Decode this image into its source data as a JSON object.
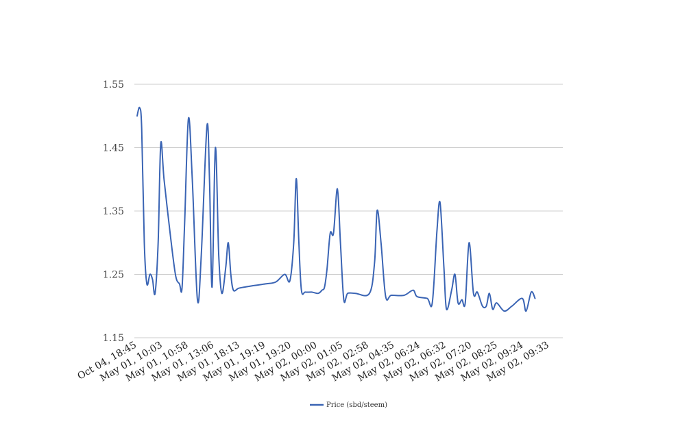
{
  "chart_data": {
    "type": "line",
    "title": "",
    "xlabel": "",
    "ylabel": "",
    "ylim": [
      1.15,
      1.55
    ],
    "yticks": [
      "1.15",
      "1.25",
      "1.35",
      "1.45",
      "1.55"
    ],
    "grid": true,
    "legend_position": "bottom-center",
    "x_tick_labels": [
      "Oct 04, 18:45",
      "May 01, 10:03",
      "May 01, 10:58",
      "May 01, 13:06",
      "May 01, 18:13",
      "May 01, 19:19",
      "May 01, 19:20",
      "May 02, 00:00",
      "May 02, 01:05",
      "May 02, 02:58",
      "May 02, 04:35",
      "May 02, 06:24",
      "May 02, 06:32",
      "May 02, 07:20",
      "May 02, 08:25",
      "May 02, 09:24",
      "May 02, 09:33"
    ],
    "series": [
      {
        "name": "Price (sbd/steem)",
        "color": "#3a64b4",
        "x_span": [
          0,
          16.5
        ],
        "points": [
          [
            0.0,
            1.5
          ],
          [
            0.1,
            1.513
          ],
          [
            0.18,
            1.48
          ],
          [
            0.28,
            1.3
          ],
          [
            0.38,
            1.235
          ],
          [
            0.5,
            1.25
          ],
          [
            0.6,
            1.242
          ],
          [
            0.7,
            1.22
          ],
          [
            0.82,
            1.3
          ],
          [
            0.92,
            1.456
          ],
          [
            1.05,
            1.4
          ],
          [
            1.3,
            1.31
          ],
          [
            1.5,
            1.248
          ],
          [
            1.65,
            1.235
          ],
          [
            1.75,
            1.228
          ],
          [
            1.85,
            1.33
          ],
          [
            2.0,
            1.496
          ],
          [
            2.15,
            1.4
          ],
          [
            2.35,
            1.21
          ],
          [
            2.5,
            1.28
          ],
          [
            2.72,
            1.484
          ],
          [
            2.82,
            1.4
          ],
          [
            2.92,
            1.23
          ],
          [
            3.05,
            1.45
          ],
          [
            3.18,
            1.28
          ],
          [
            3.3,
            1.22
          ],
          [
            3.45,
            1.26
          ],
          [
            3.55,
            1.3
          ],
          [
            3.65,
            1.25
          ],
          [
            3.75,
            1.225
          ],
          [
            3.95,
            1.228
          ],
          [
            4.2,
            1.23
          ],
          [
            4.5,
            1.232
          ],
          [
            5.0,
            1.235
          ],
          [
            5.4,
            1.238
          ],
          [
            5.75,
            1.25
          ],
          [
            5.95,
            1.24
          ],
          [
            6.1,
            1.3
          ],
          [
            6.2,
            1.401
          ],
          [
            6.3,
            1.3
          ],
          [
            6.4,
            1.225
          ],
          [
            6.55,
            1.222
          ],
          [
            6.8,
            1.222
          ],
          [
            7.05,
            1.22
          ],
          [
            7.2,
            1.225
          ],
          [
            7.3,
            1.23
          ],
          [
            7.4,
            1.26
          ],
          [
            7.52,
            1.315
          ],
          [
            7.65,
            1.315
          ],
          [
            7.8,
            1.385
          ],
          [
            7.92,
            1.3
          ],
          [
            8.05,
            1.21
          ],
          [
            8.2,
            1.22
          ],
          [
            8.5,
            1.22
          ],
          [
            9.05,
            1.22
          ],
          [
            9.25,
            1.27
          ],
          [
            9.35,
            1.351
          ],
          [
            9.5,
            1.3
          ],
          [
            9.68,
            1.215
          ],
          [
            9.9,
            1.217
          ],
          [
            10.4,
            1.217
          ],
          [
            10.75,
            1.225
          ],
          [
            10.9,
            1.215
          ],
          [
            11.3,
            1.212
          ],
          [
            11.5,
            1.206
          ],
          [
            11.68,
            1.32
          ],
          [
            11.8,
            1.363
          ],
          [
            11.95,
            1.26
          ],
          [
            12.05,
            1.195
          ],
          [
            12.25,
            1.225
          ],
          [
            12.38,
            1.25
          ],
          [
            12.5,
            1.205
          ],
          [
            12.65,
            1.21
          ],
          [
            12.78,
            1.205
          ],
          [
            12.93,
            1.3
          ],
          [
            13.1,
            1.22
          ],
          [
            13.25,
            1.222
          ],
          [
            13.45,
            1.2
          ],
          [
            13.6,
            1.2
          ],
          [
            13.72,
            1.22
          ],
          [
            13.85,
            1.195
          ],
          [
            14.0,
            1.205
          ],
          [
            14.3,
            1.192
          ],
          [
            14.6,
            1.2
          ],
          [
            15.0,
            1.212
          ],
          [
            15.15,
            1.192
          ],
          [
            15.35,
            1.222
          ],
          [
            15.5,
            1.212
          ]
        ]
      }
    ]
  }
}
